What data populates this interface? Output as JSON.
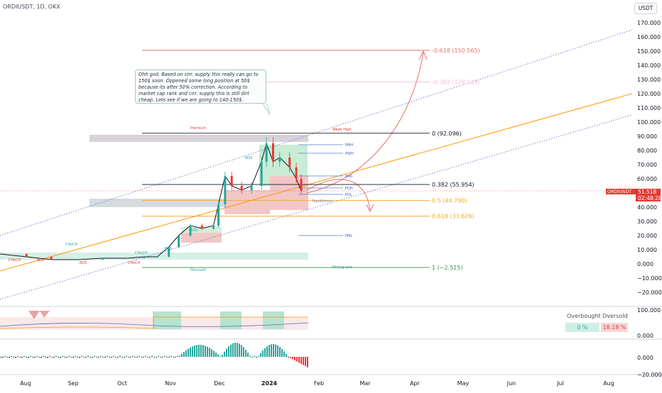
{
  "header": {
    "symbol_line": "ORDIUSDT, 1D, OKX",
    "currency_button": "USDT"
  },
  "note": {
    "text": "Ohh god. Based on cirr. supply this really can go to 150$ soon. Oppened some long position at 50$ because its after 50% correction. According to market cap rank and cirr. supply this is still dirt cheap. Lets see if we are going to 140-150$."
  },
  "price_tag": {
    "symbol": "ORDIUSDT",
    "value": "51.518",
    "countdown": "02:48:28"
  },
  "oscillator_panel": {
    "overbought_label": "Overbought",
    "oversold_label": "Oversold",
    "overbought_value": "0 %",
    "oversold_value": "18.18 %"
  },
  "chart_data": {
    "type": "line",
    "title": "ORDIUSDT, 1D, OKX",
    "x_labels": [
      "Aug",
      "Sep",
      "Oct",
      "Nov",
      "Dec",
      "2024",
      "Feb",
      "Mar",
      "Apr",
      "May",
      "Jun",
      "Jul",
      "Aug"
    ],
    "y_axis": {
      "ticks": [
        "170.000",
        "160.000",
        "150.000",
        "140.000",
        "130.000",
        "120.000",
        "110.000",
        "100.000",
        "90.000",
        "80.000",
        "70.000",
        "60.000",
        "50.000",
        "40.000",
        "30.000",
        "20.000",
        "10.000",
        "0.000",
        "−10.000",
        "−20.000"
      ],
      "tick_values": [
        170,
        160,
        150,
        140,
        130,
        120,
        110,
        100,
        90,
        80,
        70,
        60,
        50,
        40,
        30,
        20,
        10,
        0,
        -10,
        -20
      ],
      "range": [
        -25,
        175
      ]
    },
    "oscillator_axis_1": {
      "ticks": [
        "100.000",
        "0.000"
      ]
    },
    "oscillator_axis_2": {
      "ticks": [
        "0.000",
        "−20.000"
      ]
    },
    "fib_levels": [
      {
        "label": "-0.618 (150.565)",
        "value": 150.565,
        "color": "#e57373"
      },
      {
        "label": "-0.382 (128.133)",
        "value": 128.133,
        "color": "#f8bbd0"
      },
      {
        "label": "0 (92.096)",
        "value": 92.096,
        "color": "#131722"
      },
      {
        "label": "0.382 (55.954)",
        "value": 55.954,
        "color": "#131722"
      },
      {
        "label": "0.5 (44.790)",
        "value": 44.79,
        "color": "#f5a623"
      },
      {
        "label": "0.618 (33.626)",
        "value": 33.626,
        "color": "#f5a623"
      },
      {
        "label": "1 (−2.515)",
        "value": -2.515,
        "color": "#388e3c"
      }
    ],
    "levels": [
      {
        "label": "PMH",
        "value": 84
      },
      {
        "label": "PWH",
        "value": 78
      },
      {
        "label": "PWL",
        "value": 62
      },
      {
        "label": "PDH",
        "value": 53.5
      },
      {
        "label": "PDL",
        "value": 49
      },
      {
        "label": "PML",
        "value": 20
      }
    ],
    "zone_labels": {
      "premium": "Premium",
      "discount": "Discount",
      "equilibrium": "Equilibrium",
      "weak_high": "Weak High",
      "strong_low": "Strong Low"
    },
    "structure_labels": [
      "CHoCH",
      "CHoCH",
      "CHoCH",
      "CHoCH",
      "BOS",
      "BOS",
      "BOS",
      "BOS",
      "BOS"
    ],
    "price_series": {
      "dates": [
        "Jul 25",
        "Aug 10",
        "Aug 25",
        "Sep 10",
        "Sep 25",
        "Oct 10",
        "Oct 20",
        "Oct 28",
        "Nov 4",
        "Nov 10",
        "Nov 17",
        "Nov 24",
        "Dec 1",
        "Dec 4",
        "Dec 8",
        "Dec 12",
        "Dec 18",
        "Dec 24",
        "Dec 30",
        "Jan 2",
        "Jan 6",
        "Jan 10",
        "Jan 16",
        "Jan 20",
        "Jan 23"
      ],
      "close": [
        7,
        5,
        3,
        3,
        4,
        4,
        5,
        5,
        12,
        20,
        27,
        25,
        27,
        42,
        62,
        55,
        52,
        55,
        72,
        85,
        72,
        75,
        68,
        60,
        51.5
      ]
    }
  }
}
